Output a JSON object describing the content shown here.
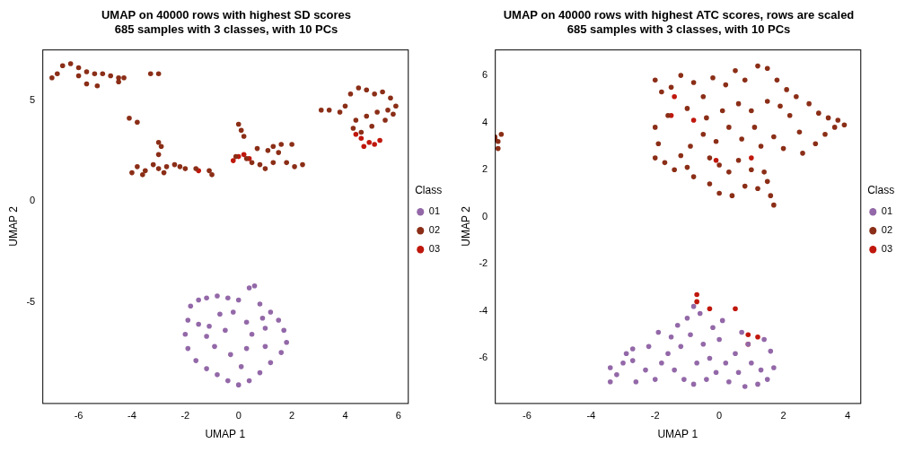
{
  "chart_data": [
    {
      "type": "scatter",
      "title": [
        "UMAP on 40000 rows with highest SD scores",
        "685 samples with 3 classes, with 10 PCs"
      ],
      "x_label": "UMAP 1",
      "y_label": "UMAP 2",
      "legend_title": "Class",
      "legend": "right",
      "grid": false,
      "marker": "circle",
      "xlim": [
        -7.36,
        6.35
      ],
      "xticks": [
        -6,
        -4,
        -2,
        0,
        2,
        4,
        6
      ],
      "ylim": [
        -10,
        7.5
      ],
      "yticks": [
        -5,
        0,
        5
      ],
      "series": [
        {
          "name": "01",
          "color": "#9368A8",
          "values": [
            [
              -1.8,
              -5.2
            ],
            [
              -1.5,
              -4.9
            ],
            [
              -1.2,
              -4.8
            ],
            [
              -0.8,
              -4.7
            ],
            [
              -0.4,
              -4.8
            ],
            [
              0,
              -4.9
            ],
            [
              0.4,
              -4.3
            ],
            [
              0.6,
              -4.2
            ],
            [
              0.8,
              -5.1
            ],
            [
              1.2,
              -5.5
            ],
            [
              1.5,
              -5.9
            ],
            [
              1.7,
              -6.4
            ],
            [
              1.8,
              -7
            ],
            [
              1.6,
              -7.5
            ],
            [
              1.2,
              -8
            ],
            [
              0.8,
              -8.5
            ],
            [
              0.4,
              -8.9
            ],
            [
              0,
              -9.1
            ],
            [
              -0.4,
              -8.9
            ],
            [
              -0.8,
              -8.6
            ],
            [
              -1.2,
              -8.3
            ],
            [
              -1.6,
              -7.9
            ],
            [
              -1.9,
              -7.3
            ],
            [
              -2,
              -6.6
            ],
            [
              -1.9,
              -5.9
            ],
            [
              -1.1,
              -6.2
            ],
            [
              -0.7,
              -5.6
            ],
            [
              -0.2,
              -5.5
            ],
            [
              0.3,
              -6
            ],
            [
              0.5,
              -6.6
            ],
            [
              0.3,
              -7.3
            ],
            [
              -0.3,
              -7.6
            ],
            [
              -0.9,
              -7.2
            ],
            [
              -1.2,
              -6.7
            ],
            [
              1,
              -6.3
            ],
            [
              1,
              -7.2
            ],
            [
              -0.5,
              -6.4
            ],
            [
              0.9,
              -5.8
            ],
            [
              -1.5,
              -6.1
            ],
            [
              0.1,
              -8.2
            ]
          ]
        },
        {
          "name": "02",
          "color": "#8B2E17",
          "values": [
            [
              -7,
              6.1
            ],
            [
              -6.8,
              6.3
            ],
            [
              -6.6,
              6.7
            ],
            [
              -6.3,
              6.8
            ],
            [
              -6,
              6.6
            ],
            [
              -5.7,
              6.4
            ],
            [
              -5.4,
              6.3
            ],
            [
              -5.1,
              6.3
            ],
            [
              -4.8,
              6.2
            ],
            [
              -4.5,
              6.1
            ],
            [
              -4.3,
              6.1
            ],
            [
              -4.5,
              5.9
            ],
            [
              -5.7,
              5.8
            ],
            [
              -6,
              6.2
            ],
            [
              -5.3,
              5.7
            ],
            [
              -3.3,
              6.3
            ],
            [
              -3,
              6.3
            ],
            [
              -4.1,
              4.1
            ],
            [
              -3.8,
              3.9
            ],
            [
              -4,
              1.4
            ],
            [
              -3.8,
              1.7
            ],
            [
              -3.5,
              1.5
            ],
            [
              -3.2,
              1.8
            ],
            [
              -3,
              1.6
            ],
            [
              -2.7,
              1.7
            ],
            [
              -2.4,
              1.8
            ],
            [
              -2.2,
              1.7
            ],
            [
              -3.6,
              1.3
            ],
            [
              -3,
              2.3
            ],
            [
              -2.9,
              2.7
            ],
            [
              -3,
              2.9
            ],
            [
              -2.8,
              1.4
            ],
            [
              -1.6,
              1.6
            ],
            [
              -1.1,
              1.5
            ],
            [
              -1,
              1.3
            ],
            [
              -2,
              1.6
            ],
            [
              0,
              3.8
            ],
            [
              0.1,
              3.5
            ],
            [
              0.2,
              3.2
            ],
            [
              -0.1,
              2.2
            ],
            [
              0.3,
              2.1
            ],
            [
              0.5,
              1.9
            ],
            [
              0.8,
              1.8
            ],
            [
              1.1,
              2.5
            ],
            [
              1.3,
              2.7
            ],
            [
              1.5,
              2.4
            ],
            [
              1.8,
              1.9
            ],
            [
              2.1,
              1.7
            ],
            [
              2.4,
              1.8
            ],
            [
              1,
              1.6
            ],
            [
              1.6,
              2.8
            ],
            [
              2,
              2.8
            ],
            [
              1.3,
              1.9
            ],
            [
              0.7,
              2.6
            ],
            [
              3.1,
              4.5
            ],
            [
              3.4,
              4.5
            ],
            [
              3.8,
              4.4
            ],
            [
              4,
              4.7
            ],
            [
              4.2,
              5.3
            ],
            [
              4.5,
              5.6
            ],
            [
              4.8,
              5.5
            ],
            [
              5.1,
              5.3
            ],
            [
              5.4,
              5.4
            ],
            [
              5.7,
              5.1
            ],
            [
              5.9,
              4.7
            ],
            [
              5.6,
              4.5
            ],
            [
              5.2,
              4.4
            ],
            [
              4.8,
              4.2
            ],
            [
              4.4,
              4
            ],
            [
              4.3,
              3.6
            ],
            [
              4.6,
              3.4
            ],
            [
              5,
              3.7
            ],
            [
              5.5,
              4
            ],
            [
              5.8,
              4.3
            ]
          ]
        },
        {
          "name": "03",
          "color": "#C0170C",
          "values": [
            [
              4.6,
              3.1
            ],
            [
              4.9,
              2.9
            ],
            [
              5.1,
              2.8
            ],
            [
              5.3,
              3
            ],
            [
              4.7,
              2.7
            ],
            [
              0,
              2.2
            ],
            [
              0.2,
              2.3
            ],
            [
              0.4,
              2.1
            ],
            [
              -0.2,
              2
            ],
            [
              4.4,
              3.3
            ],
            [
              -1.5,
              1.5
            ]
          ]
        }
      ]
    },
    {
      "type": "scatter",
      "title": [
        "UMAP on 40000 rows with highest ATC scores, rows are scaled",
        "685 samples with 3 classes, with 10 PCs"
      ],
      "x_label": "UMAP 1",
      "y_label": "UMAP 2",
      "legend_title": "Class",
      "legend": "right",
      "grid": false,
      "marker": "circle",
      "xlim": [
        -7.0,
        4.4
      ],
      "xticks": [
        -6,
        -4,
        -2,
        0,
        2,
        4
      ],
      "ylim": [
        -7.9,
        7.1
      ],
      "yticks": [
        -6,
        -4,
        -2,
        0,
        2,
        4,
        6
      ],
      "series": [
        {
          "name": "01",
          "color": "#9368A8",
          "values": [
            [
              -3.4,
              -7
            ],
            [
              -3.2,
              -6.7
            ],
            [
              -3.4,
              -6.4
            ],
            [
              -3,
              -6.2
            ],
            [
              -2.7,
              -6.1
            ],
            [
              -2.7,
              -5.6
            ],
            [
              -2.2,
              -5.5
            ],
            [
              -2.3,
              -6.5
            ],
            [
              -2,
              -6.9
            ],
            [
              -1.8,
              -6.2
            ],
            [
              -1.6,
              -5.8
            ],
            [
              -1.5,
              -5.1
            ],
            [
              -1.3,
              -4.6
            ],
            [
              -1,
              -4.3
            ],
            [
              -0.8,
              -3.8
            ],
            [
              -0.6,
              -4.1
            ],
            [
              -0.9,
              -5
            ],
            [
              -1.2,
              -5.5
            ],
            [
              -1.1,
              -6.9
            ],
            [
              -0.8,
              -7.1
            ],
            [
              -0.4,
              -6.9
            ],
            [
              -0.3,
              -6
            ],
            [
              -0.5,
              -5.4
            ],
            [
              -0.2,
              -4.7
            ],
            [
              0,
              -5.2
            ],
            [
              0.2,
              -6.2
            ],
            [
              0.3,
              -7
            ],
            [
              0.6,
              -6.6
            ],
            [
              0.5,
              -5.8
            ],
            [
              0.7,
              -4.9
            ],
            [
              0.9,
              -5.4
            ],
            [
              1,
              -6.2
            ],
            [
              1.2,
              -7.1
            ],
            [
              1.3,
              -6.5
            ],
            [
              1.5,
              -6.9
            ],
            [
              1.7,
              -6.4
            ],
            [
              1.6,
              -5.7
            ],
            [
              1.4,
              -5.2
            ],
            [
              -2.6,
              -7
            ],
            [
              -1.9,
              -4.9
            ],
            [
              -0.1,
              -6.6
            ],
            [
              -1.4,
              -6.5
            ],
            [
              0.8,
              -7.2
            ],
            [
              -2.9,
              -5.8
            ],
            [
              -0.7,
              -6.2
            ],
            [
              0.1,
              -4.4
            ]
          ]
        },
        {
          "name": "02",
          "color": "#8B2E17",
          "values": [
            [
              -7,
              3.4
            ],
            [
              -6.9,
              3.2
            ],
            [
              -7,
              3.3
            ],
            [
              -6.8,
              3.5
            ],
            [
              -6.9,
              2.9
            ],
            [
              -2,
              5.8
            ],
            [
              -1.8,
              5.3
            ],
            [
              -1.5,
              5.5
            ],
            [
              -1.2,
              6
            ],
            [
              -0.8,
              5.7
            ],
            [
              -0.5,
              5.1
            ],
            [
              -0.2,
              5.9
            ],
            [
              0.2,
              5.6
            ],
            [
              0.5,
              6.2
            ],
            [
              0.8,
              5.8
            ],
            [
              1.2,
              6.4
            ],
            [
              1.5,
              6.3
            ],
            [
              1.8,
              5.8
            ],
            [
              2.1,
              5.4
            ],
            [
              2.4,
              5.1
            ],
            [
              2.8,
              4.8
            ],
            [
              3.1,
              4.4
            ],
            [
              3.4,
              4.2
            ],
            [
              3.7,
              4.1
            ],
            [
              3.9,
              3.9
            ],
            [
              3.6,
              3.8
            ],
            [
              3.3,
              3.5
            ],
            [
              3,
              3.1
            ],
            [
              2.5,
              3.6
            ],
            [
              2.2,
              4.3
            ],
            [
              1.9,
              4.7
            ],
            [
              1.5,
              4.9
            ],
            [
              1,
              4.5
            ],
            [
              0.6,
              4.8
            ],
            [
              0.1,
              4.5
            ],
            [
              -0.4,
              4.2
            ],
            [
              -1,
              4.6
            ],
            [
              -1.6,
              4.3
            ],
            [
              -2,
              3.8
            ],
            [
              -1.9,
              3.1
            ],
            [
              -2,
              2.5
            ],
            [
              -1.7,
              2.3
            ],
            [
              -1.4,
              2
            ],
            [
              -1.2,
              2.6
            ],
            [
              -0.9,
              3
            ],
            [
              -0.5,
              3.5
            ],
            [
              -0.1,
              3.2
            ],
            [
              0.3,
              3.8
            ],
            [
              0.7,
              3.3
            ],
            [
              1.1,
              3.8
            ],
            [
              1.3,
              3
            ],
            [
              1.7,
              3.4
            ],
            [
              2,
              2.9
            ],
            [
              2.6,
              2.7
            ],
            [
              -0.3,
              2.5
            ],
            [
              0,
              2.2
            ],
            [
              0.3,
              1.9
            ],
            [
              0.6,
              2.4
            ],
            [
              1,
              2
            ],
            [
              1.4,
              1.9
            ],
            [
              -0.8,
              1.7
            ],
            [
              -0.3,
              1.4
            ],
            [
              0,
              1
            ],
            [
              0.4,
              0.9
            ],
            [
              0.8,
              1.3
            ],
            [
              1.2,
              1.2
            ],
            [
              1.6,
              0.9
            ],
            [
              1.7,
              0.5
            ],
            [
              1.5,
              1.5
            ],
            [
              -1,
              2.1
            ]
          ]
        },
        {
          "name": "03",
          "color": "#C0170C",
          "values": [
            [
              -1.5,
              4.3
            ],
            [
              -0.8,
              4.1
            ],
            [
              -0.1,
              2.4
            ],
            [
              -1.4,
              5.1
            ],
            [
              -7,
              3.3
            ],
            [
              -0.7,
              -3.3
            ],
            [
              -0.7,
              -3.6
            ],
            [
              -0.3,
              -3.9
            ],
            [
              0.9,
              -5
            ],
            [
              1.2,
              -5.1
            ],
            [
              0.9,
              -5.4
            ],
            [
              0.5,
              -3.9
            ],
            [
              1,
              2.5
            ]
          ]
        }
      ]
    }
  ]
}
